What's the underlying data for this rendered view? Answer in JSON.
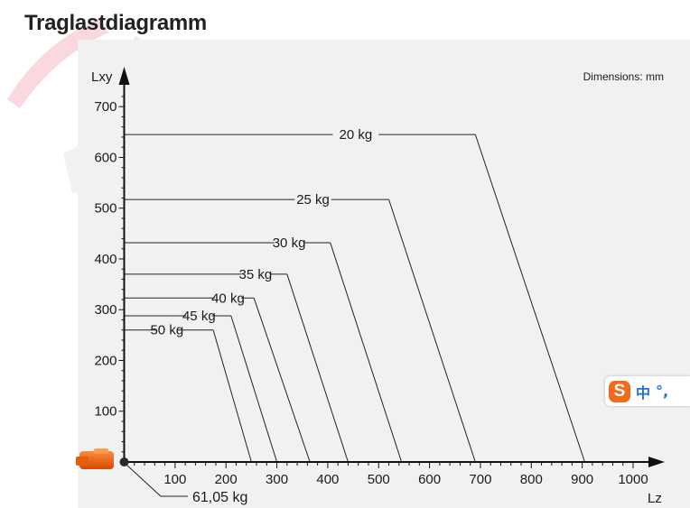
{
  "title": "Traglastdiagramm",
  "dimensions_note": "Dimensions: mm",
  "base_label": "61,05 kg",
  "ime": {
    "chinese_label": "中",
    "punct_label": "°,"
  },
  "chart_data": {
    "type": "line",
    "xlabel": "Lz",
    "ylabel": "Lxy",
    "xlim": [
      0,
      1000
    ],
    "ylim": [
      0,
      700
    ],
    "x_ticks": [
      100,
      200,
      300,
      400,
      500,
      600,
      700,
      800,
      900,
      1000
    ],
    "y_ticks": [
      100,
      200,
      300,
      400,
      500,
      600,
      700
    ],
    "series": [
      {
        "name": "20 kg",
        "points": [
          [
            0,
            645
          ],
          [
            690,
            645
          ],
          [
            905,
            0
          ]
        ]
      },
      {
        "name": "25 kg",
        "points": [
          [
            0,
            517
          ],
          [
            520,
            517
          ],
          [
            690,
            0
          ]
        ]
      },
      {
        "name": "30 kg",
        "points": [
          [
            0,
            432
          ],
          [
            405,
            432
          ],
          [
            545,
            0
          ]
        ]
      },
      {
        "name": "35 kg",
        "points": [
          [
            0,
            370
          ],
          [
            320,
            370
          ],
          [
            440,
            0
          ]
        ]
      },
      {
        "name": "40 kg",
        "points": [
          [
            0,
            323
          ],
          [
            255,
            323
          ],
          [
            365,
            0
          ]
        ]
      },
      {
        "name": "45 kg",
        "points": [
          [
            0,
            288
          ],
          [
            210,
            288
          ],
          [
            300,
            0
          ]
        ]
      },
      {
        "name": "50 kg",
        "points": [
          [
            0,
            260
          ],
          [
            175,
            260
          ],
          [
            250,
            0
          ]
        ]
      }
    ],
    "label_x": [
      410,
      335,
      295,
      230,
      178,
      122,
      63
    ],
    "label_gap": [
      90,
      72,
      58,
      56,
      52,
      50,
      42
    ]
  }
}
